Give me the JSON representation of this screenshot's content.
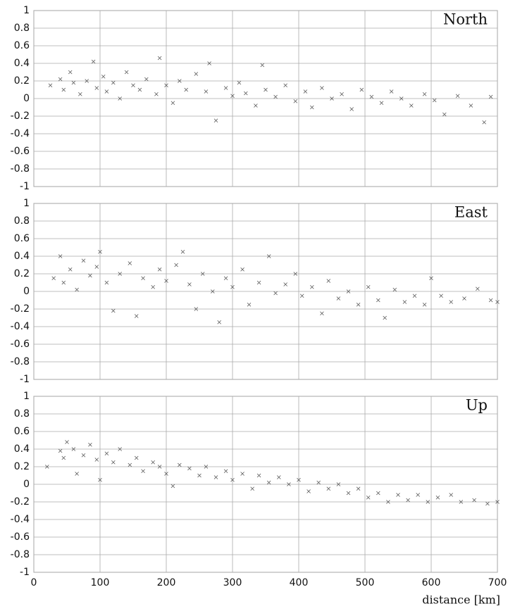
{
  "chart_data": [
    {
      "type": "scatter",
      "title": "North",
      "color": "#555555",
      "grid": true,
      "xlim": [
        0,
        700
      ],
      "ylim": [
        -1,
        1
      ],
      "xticks": [
        0,
        100,
        200,
        300,
        400,
        500,
        600,
        700
      ],
      "yticks": [
        1,
        0.8,
        0.6,
        0.4,
        0.2,
        0,
        -0.2,
        -0.4,
        -0.6,
        -0.8,
        -1
      ],
      "x": [
        25,
        40,
        45,
        55,
        60,
        70,
        80,
        90,
        95,
        105,
        110,
        120,
        130,
        140,
        150,
        160,
        170,
        185,
        190,
        200,
        210,
        220,
        230,
        245,
        260,
        265,
        275,
        290,
        300,
        310,
        320,
        335,
        345,
        350,
        365,
        380,
        395,
        410,
        420,
        435,
        450,
        465,
        480,
        495,
        510,
        525,
        540,
        555,
        570,
        590,
        605,
        620,
        640,
        660,
        680,
        690
      ],
      "y": [
        0.15,
        0.22,
        0.1,
        0.3,
        0.18,
        0.05,
        0.2,
        0.42,
        0.12,
        0.25,
        0.08,
        0.18,
        0.0,
        0.3,
        0.15,
        0.1,
        0.22,
        0.05,
        0.46,
        0.15,
        -0.05,
        0.2,
        0.1,
        0.28,
        0.08,
        0.4,
        -0.25,
        0.12,
        0.03,
        0.18,
        0.06,
        -0.08,
        0.38,
        0.1,
        0.02,
        0.15,
        -0.03,
        0.08,
        -0.1,
        0.12,
        0.0,
        0.05,
        -0.12,
        0.1,
        0.02,
        -0.05,
        0.08,
        0.0,
        -0.08,
        0.05,
        -0.02,
        -0.18,
        0.03,
        -0.08,
        -0.27,
        0.02
      ]
    },
    {
      "type": "scatter",
      "title": "East",
      "color": "#555555",
      "grid": true,
      "xlim": [
        0,
        700
      ],
      "ylim": [
        -1,
        1
      ],
      "xticks": [
        0,
        100,
        200,
        300,
        400,
        500,
        600,
        700
      ],
      "yticks": [
        1,
        0.8,
        0.6,
        0.4,
        0.2,
        0,
        -0.2,
        -0.4,
        -0.6,
        -0.8,
        -1
      ],
      "x": [
        30,
        40,
        45,
        55,
        65,
        75,
        85,
        95,
        100,
        110,
        120,
        130,
        145,
        155,
        165,
        180,
        190,
        200,
        215,
        225,
        235,
        245,
        255,
        270,
        280,
        290,
        300,
        315,
        325,
        340,
        355,
        365,
        380,
        395,
        405,
        420,
        435,
        445,
        460,
        475,
        490,
        505,
        520,
        530,
        545,
        560,
        575,
        590,
        600,
        615,
        630,
        650,
        670,
        690,
        700
      ],
      "y": [
        0.15,
        0.4,
        0.1,
        0.25,
        0.02,
        0.35,
        0.18,
        0.28,
        0.45,
        0.1,
        -0.22,
        0.2,
        0.32,
        -0.28,
        0.15,
        0.05,
        0.25,
        0.12,
        0.3,
        0.45,
        0.08,
        -0.2,
        0.2,
        0.0,
        -0.35,
        0.15,
        0.05,
        0.25,
        -0.15,
        0.1,
        0.4,
        -0.02,
        0.08,
        0.2,
        -0.05,
        0.05,
        -0.25,
        0.12,
        -0.08,
        0.0,
        -0.15,
        0.05,
        -0.1,
        -0.3,
        0.02,
        -0.12,
        -0.05,
        -0.15,
        0.15,
        -0.05,
        -0.12,
        -0.08,
        0.03,
        -0.1,
        -0.12
      ]
    },
    {
      "type": "scatter",
      "title": "Up",
      "color": "#555555",
      "grid": true,
      "xlim": [
        0,
        700
      ],
      "ylim": [
        -1,
        1
      ],
      "xlabel": "distance [km]",
      "xticks": [
        0,
        100,
        200,
        300,
        400,
        500,
        600,
        700
      ],
      "yticks": [
        1,
        0.8,
        0.6,
        0.4,
        0.2,
        0,
        -0.2,
        -0.4,
        -0.6,
        -0.8,
        -1
      ],
      "x": [
        20,
        40,
        45,
        50,
        60,
        65,
        75,
        85,
        95,
        100,
        110,
        120,
        130,
        145,
        155,
        165,
        180,
        190,
        200,
        210,
        220,
        235,
        250,
        260,
        275,
        290,
        300,
        315,
        330,
        340,
        355,
        370,
        385,
        400,
        415,
        430,
        445,
        460,
        475,
        490,
        505,
        520,
        535,
        550,
        565,
        580,
        595,
        610,
        630,
        645,
        665,
        685,
        700
      ],
      "y": [
        0.2,
        0.38,
        0.3,
        0.48,
        0.4,
        0.12,
        0.33,
        0.45,
        0.28,
        0.05,
        0.35,
        0.25,
        0.4,
        0.22,
        0.3,
        0.15,
        0.25,
        0.2,
        0.12,
        -0.02,
        0.22,
        0.18,
        0.1,
        0.2,
        0.08,
        0.15,
        0.05,
        0.12,
        -0.05,
        0.1,
        0.02,
        0.08,
        0.0,
        0.05,
        -0.08,
        0.02,
        -0.05,
        0.0,
        -0.1,
        -0.05,
        -0.15,
        -0.1,
        -0.2,
        -0.12,
        -0.18,
        -0.12,
        -0.2,
        -0.15,
        -0.12,
        -0.2,
        -0.18,
        -0.22,
        -0.2
      ]
    }
  ]
}
